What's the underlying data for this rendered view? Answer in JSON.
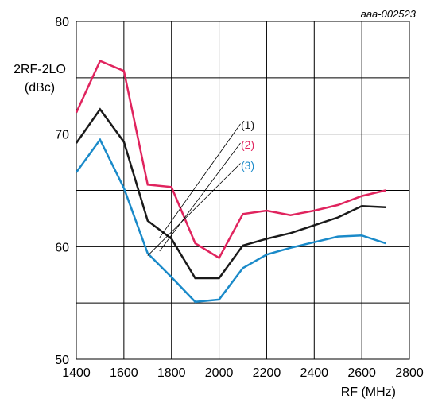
{
  "chart_data": {
    "type": "line",
    "reference": "aaa-002523",
    "ylabel_line1": "2RF-2LO",
    "ylabel_line2": "(dBc)",
    "xlabel": "RF (MHz)",
    "xlim": [
      1400,
      2800
    ],
    "ylim": [
      50,
      80
    ],
    "x_ticks": [
      "1400",
      "1600",
      "1800",
      "2000",
      "2200",
      "2400",
      "2600",
      "2800"
    ],
    "y_ticks": [
      "80",
      "70",
      "60",
      "50"
    ],
    "grid": true,
    "series": [
      {
        "name": "(1)",
        "color": "#1a1a1a",
        "x": [
          1400,
          1500,
          1600,
          1700,
          1800,
          1900,
          2000,
          2100,
          2200,
          2300,
          2400,
          2500,
          2600,
          2700
        ],
        "y": [
          69.2,
          72.2,
          69.3,
          62.3,
          60.7,
          57.2,
          57.2,
          60.1,
          60.7,
          61.2,
          61.9,
          62.6,
          63.6,
          63.5
        ]
      },
      {
        "name": "(2)",
        "color": "#e0245e",
        "x": [
          1400,
          1500,
          1600,
          1700,
          1800,
          1900,
          2000,
          2100,
          2200,
          2300,
          2400,
          2500,
          2600,
          2700
        ],
        "y": [
          71.9,
          76.5,
          75.6,
          65.5,
          65.3,
          60.3,
          59.0,
          62.9,
          63.2,
          62.8,
          63.2,
          63.7,
          64.5,
          65.0
        ]
      },
      {
        "name": "(3)",
        "color": "#1a8ac9",
        "x": [
          1400,
          1500,
          1600,
          1700,
          1800,
          1900,
          2000,
          2100,
          2200,
          2300,
          2400,
          2500,
          2600,
          2700
        ],
        "y": [
          66.6,
          69.5,
          65.2,
          59.4,
          57.3,
          55.1,
          55.3,
          58.1,
          59.3,
          59.9,
          60.4,
          60.9,
          61.0,
          60.3
        ]
      }
    ]
  }
}
